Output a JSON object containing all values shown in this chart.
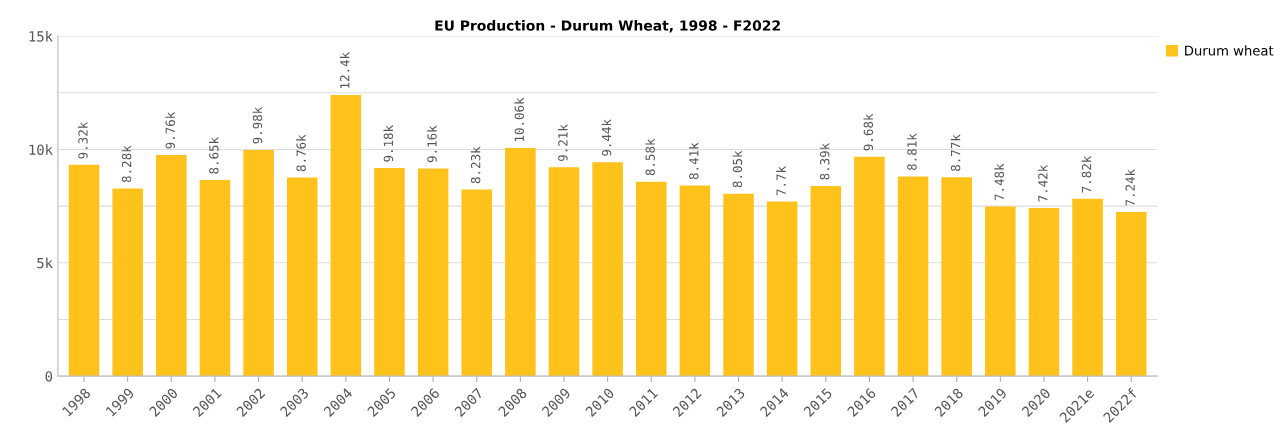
{
  "chart_data": {
    "type": "bar",
    "title": "EU Production - Durum Wheat, 1998 - F2022",
    "categories": [
      "1998",
      "1999",
      "2000",
      "2001",
      "2002",
      "2003",
      "2004",
      "2005",
      "2006",
      "2007",
      "2008",
      "2009",
      "2010",
      "2011",
      "2012",
      "2013",
      "2014",
      "2015",
      "2016",
      "2017",
      "2018",
      "2019",
      "2020",
      "2021e",
      "2022f"
    ],
    "series": [
      {
        "name": "Durum wheat",
        "color": "#ffc21a",
        "values": [
          9320,
          8280,
          9760,
          8650,
          9980,
          8760,
          12400,
          9180,
          9160,
          8230,
          10060,
          9210,
          9440,
          8580,
          8410,
          8050,
          7700,
          8390,
          9680,
          8810,
          8770,
          7480,
          7420,
          7820,
          7240
        ],
        "value_labels": [
          "9.32k",
          "8.28k",
          "9.76k",
          "8.65k",
          "9.98k",
          "8.76k",
          "12.4k",
          "9.18k",
          "9.16k",
          "8.23k",
          "10.06k",
          "9.21k",
          "9.44k",
          "8.58k",
          "8.41k",
          "8.05k",
          "7.7k",
          "8.39k",
          "9.68k",
          "8.81k",
          "8.77k",
          "7.48k",
          "7.42k",
          "7.82k",
          "7.24k"
        ]
      }
    ],
    "ylim": [
      0,
      15000
    ],
    "yticks": [
      {
        "value": 0,
        "label": "0"
      },
      {
        "value": 2500,
        "label": null
      },
      {
        "value": 5000,
        "label": "5k"
      },
      {
        "value": 7500,
        "label": null
      },
      {
        "value": 10000,
        "label": "10k"
      },
      {
        "value": 12500,
        "label": null
      },
      {
        "value": 15000,
        "label": "15k"
      }
    ],
    "grid": "y",
    "legend": "top right"
  }
}
